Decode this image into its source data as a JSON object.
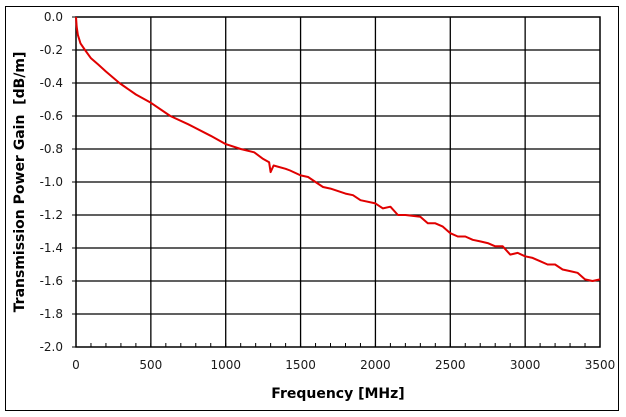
{
  "chart_data": {
    "type": "line",
    "title": "",
    "xlabel": "Frequency [MHz]",
    "ylabel": "Transmission Power Gain  [dB/m]",
    "xlim": [
      0,
      3500
    ],
    "ylim": [
      -2.0,
      0.0
    ],
    "x_ticks": [
      0,
      500,
      1000,
      1500,
      2000,
      2500,
      3000,
      3500
    ],
    "x_tick_labels": [
      "0",
      "500",
      "1000",
      "1500",
      "2000",
      "2500",
      "3000",
      "3500"
    ],
    "y_ticks": [
      0.0,
      -0.2,
      -0.4,
      -0.6,
      -0.8,
      -1.0,
      -1.2,
      -1.4,
      -1.6,
      -1.8,
      -2.0
    ],
    "y_tick_labels": [
      "0.0",
      "-0.2",
      "-0.4",
      "-0.6",
      "-0.8",
      "-1.0",
      "-1.2",
      "-1.4",
      "-1.6",
      "-1.8",
      "-2.0"
    ],
    "x_minor_tick_step": 100,
    "grid": true,
    "legend": null,
    "series": [
      {
        "name": "Transmission Power Gain",
        "color": "#e00000",
        "x": [
          0,
          5,
          13,
          30,
          60,
          100,
          150,
          200,
          290,
          400,
          500,
          630,
          750,
          900,
          1000,
          1100,
          1190,
          1250,
          1290,
          1300,
          1320,
          1400,
          1430,
          1500,
          1550,
          1600,
          1650,
          1700,
          1800,
          1850,
          1900,
          2000,
          2050,
          2100,
          2150,
          2200,
          2300,
          2350,
          2400,
          2450,
          2500,
          2550,
          2600,
          2650,
          2700,
          2750,
          2800,
          2850,
          2900,
          2950,
          3000,
          3050,
          3100,
          3150,
          3200,
          3250,
          3300,
          3350,
          3400,
          3450,
          3500
        ],
        "values": [
          0.0,
          -0.06,
          -0.11,
          -0.16,
          -0.2,
          -0.25,
          -0.29,
          -0.33,
          -0.4,
          -0.47,
          -0.52,
          -0.6,
          -0.65,
          -0.72,
          -0.77,
          -0.8,
          -0.82,
          -0.86,
          -0.88,
          -0.94,
          -0.9,
          -0.92,
          -0.93,
          -0.96,
          -0.97,
          -1.0,
          -1.03,
          -1.04,
          -1.07,
          -1.08,
          -1.11,
          -1.13,
          -1.16,
          -1.15,
          -1.2,
          -1.2,
          -1.21,
          -1.25,
          -1.25,
          -1.27,
          -1.31,
          -1.33,
          -1.33,
          -1.35,
          -1.36,
          -1.37,
          -1.39,
          -1.39,
          -1.44,
          -1.43,
          -1.45,
          -1.46,
          -1.48,
          -1.5,
          -1.5,
          -1.53,
          -1.54,
          -1.55,
          -1.59,
          -1.6,
          -1.59
        ]
      }
    ]
  }
}
